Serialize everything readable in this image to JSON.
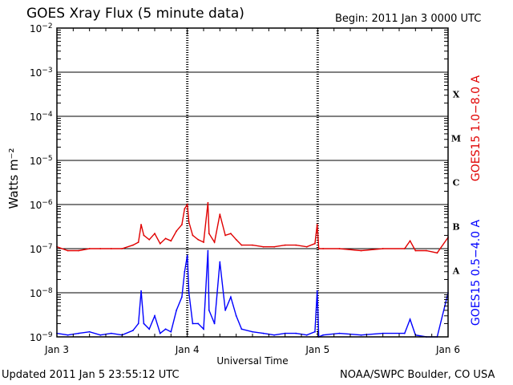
{
  "header": {
    "title": "GOES Xray Flux (5 minute data)",
    "begin": "Begin:  2011 Jan 3 0000 UTC"
  },
  "footer": {
    "updated": "Updated 2011 Jan  5 23:55:12 UTC",
    "credit": "NOAA/SWPC Boulder, CO USA"
  },
  "colors": {
    "long_channel": "#e00000",
    "short_channel": "#0000ff",
    "frame": "#000000"
  },
  "chart_data": {
    "type": "line",
    "title": "GOES Xray Flux (5 minute data)",
    "xlabel": "Universal Time",
    "ylabel": "Watts m⁻²",
    "y_scale": "log",
    "ylim": [
      1e-09,
      0.01
    ],
    "xlim": [
      "2011-01-03 00:00",
      "2011-01-06 00:00"
    ],
    "x_ticks": [
      "Jan 3",
      "Jan 4",
      "Jan 5",
      "Jan 6"
    ],
    "y_ticks": [
      {
        "base": "10",
        "exp": "−2"
      },
      {
        "base": "10",
        "exp": "−3"
      },
      {
        "base": "10",
        "exp": "−4"
      },
      {
        "base": "10",
        "exp": "−5"
      },
      {
        "base": "10",
        "exp": "−6"
      },
      {
        "base": "10",
        "exp": "−7"
      },
      {
        "base": "10",
        "exp": "−8"
      },
      {
        "base": "10",
        "exp": "−9"
      }
    ],
    "flare_classes": [
      "X",
      "M",
      "C",
      "B",
      "A"
    ],
    "grid": true,
    "series": [
      {
        "name": "GOES15 1.0−8.0 A",
        "color": "#e00000",
        "x_hours": [
          0,
          2,
          4,
          6,
          8,
          10,
          12,
          14,
          15,
          15.5,
          16,
          17,
          18,
          19,
          20,
          21,
          22,
          23,
          23.5,
          24,
          24.3,
          25,
          26,
          27,
          27.8,
          28,
          29,
          30,
          31,
          32,
          33,
          34,
          36,
          38,
          40,
          42,
          44,
          46,
          47.5,
          47.9,
          48.2,
          49,
          52,
          56,
          60,
          64,
          65,
          66,
          68,
          70,
          72
        ],
        "values": [
          1.1e-07,
          9e-08,
          9e-08,
          1e-07,
          1e-07,
          1e-07,
          1e-07,
          1.2e-07,
          1.4e-07,
          3.5e-07,
          2e-07,
          1.6e-07,
          2.2e-07,
          1.3e-07,
          1.7e-07,
          1.5e-07,
          2.5e-07,
          3.5e-07,
          8e-07,
          1e-06,
          4e-07,
          2e-07,
          1.6e-07,
          1.4e-07,
          1.1e-06,
          2.2e-07,
          1.4e-07,
          6e-07,
          2e-07,
          2.2e-07,
          1.6e-07,
          1.2e-07,
          1.2e-07,
          1.1e-07,
          1.1e-07,
          1.2e-07,
          1.2e-07,
          1.1e-07,
          1.3e-07,
          3.5e-07,
          1e-07,
          1e-07,
          1e-07,
          9e-08,
          1e-07,
          1e-07,
          1.5e-07,
          9e-08,
          9e-08,
          8e-08,
          1.8e-07
        ]
      },
      {
        "name": "GOES15 0.5−4.0 A",
        "color": "#0000ff",
        "x_hours": [
          0,
          2,
          4,
          6,
          8,
          10,
          12,
          14,
          15,
          15.5,
          16,
          17,
          18,
          19,
          20,
          21,
          22,
          23,
          23.5,
          24,
          24.3,
          25,
          26,
          27,
          27.8,
          28,
          29,
          30,
          31,
          32,
          33,
          34,
          36,
          38,
          40,
          42,
          44,
          46,
          47.5,
          47.9,
          48.2,
          49,
          52,
          56,
          60,
          64,
          65,
          66,
          68,
          70,
          72
        ],
        "values": [
          1.2e-09,
          1.1e-09,
          1.2e-09,
          1.3e-09,
          1.1e-09,
          1.2e-09,
          1.1e-09,
          1.4e-09,
          2e-09,
          1.1e-08,
          2e-09,
          1.5e-09,
          3e-09,
          1.2e-09,
          1.5e-09,
          1.3e-09,
          4e-09,
          8e-09,
          3e-08,
          7e-08,
          1e-08,
          2e-09,
          2e-09,
          1.5e-09,
          9e-08,
          4e-09,
          2e-09,
          5e-08,
          4e-09,
          8e-09,
          3e-09,
          1.5e-09,
          1.3e-09,
          1.2e-09,
          1.1e-09,
          1.2e-09,
          1.2e-09,
          1.1e-09,
          1.3e-09,
          1.1e-08,
          1e-09,
          1.1e-09,
          1.2e-09,
          1.1e-09,
          1.2e-09,
          1.2e-09,
          2.5e-09,
          1.1e-09,
          1e-09,
          1e-09,
          1e-08
        ]
      }
    ]
  }
}
